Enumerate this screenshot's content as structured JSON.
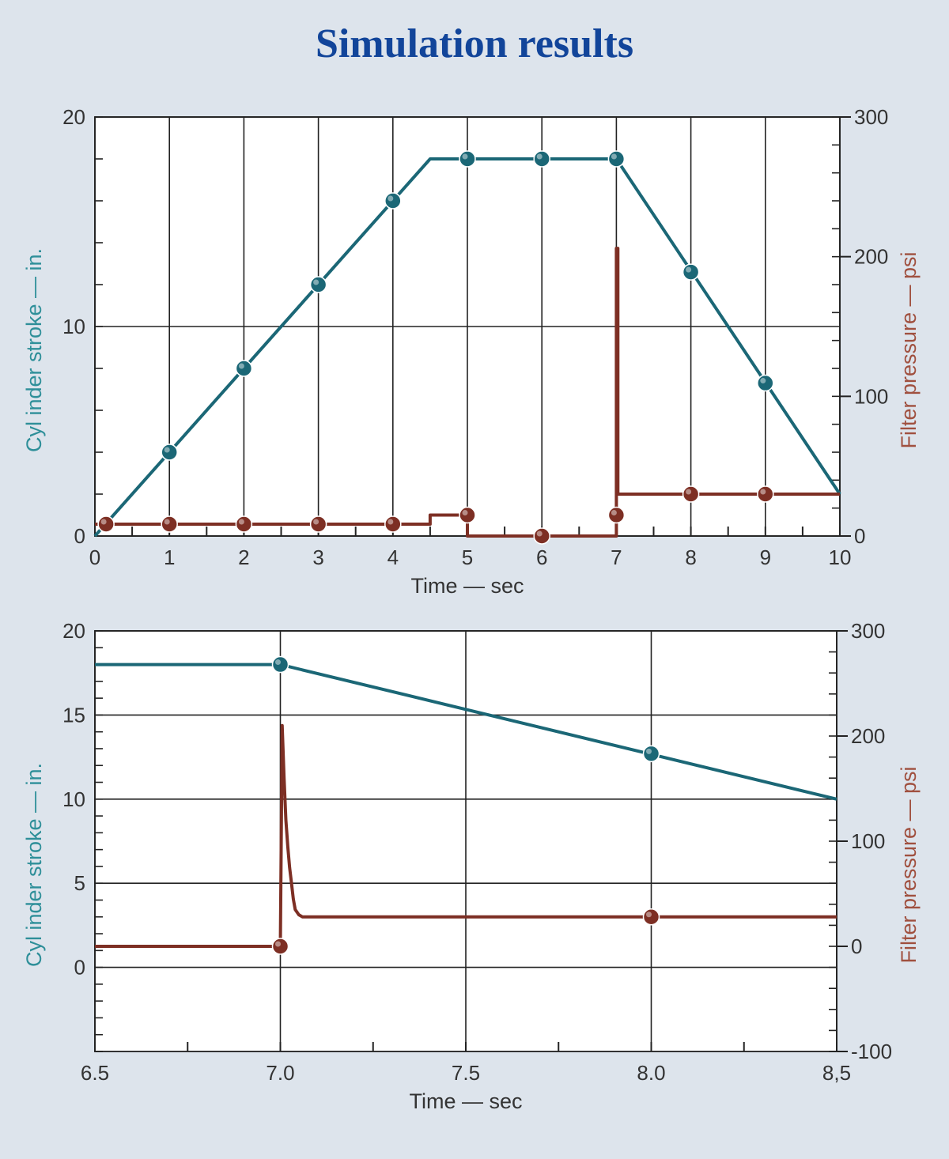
{
  "title": "Simulation results",
  "colors": {
    "background": "#dde4ec",
    "title": "#12459a",
    "stroke_series": "#1b6776",
    "stroke_label": "#2e8f99",
    "pressure_series": "#7d2f24",
    "pressure_label": "#a0503f"
  },
  "chart_data": [
    {
      "type": "line",
      "xlabel": "Time — sec",
      "ylabel_left": "Cyl inder stroke — in.",
      "ylabel_right": "Filter pressure — psi",
      "xlim": [
        0,
        10
      ],
      "ylim_left": [
        0,
        20
      ],
      "ylim_right": [
        0,
        300
      ],
      "x_ticks": [
        0,
        1,
        2,
        3,
        4,
        5,
        6,
        7,
        8,
        9,
        10
      ],
      "x_tick_labels": [
        "0",
        "1",
        "2",
        "3",
        "4",
        "5",
        "6",
        "7",
        "8",
        "9",
        "10"
      ],
      "y_ticks_left": [
        0,
        10,
        20
      ],
      "y_tick_labels_left": [
        "0",
        "10",
        "20"
      ],
      "y_ticks_right": [
        0,
        100,
        200,
        300
      ],
      "y_tick_labels_right": [
        "0",
        "100",
        "200",
        "300"
      ],
      "grid": true,
      "series": [
        {
          "axis": "left",
          "x": [
            0,
            4.5,
            7.0,
            10
          ],
          "y": [
            0,
            18,
            18,
            2
          ],
          "markers_x": [
            1,
            2,
            3,
            4,
            5,
            6,
            7,
            8,
            9
          ],
          "markers_y": [
            4,
            8,
            12,
            16,
            18,
            18,
            18,
            12.6,
            7.3
          ]
        },
        {
          "axis": "right",
          "x": [
            0,
            4.5,
            4.5,
            5.0,
            5.0,
            7.0,
            7.0,
            7.02,
            7.02,
            10
          ],
          "y": [
            8.5,
            8.5,
            15,
            15,
            0,
            0,
            206,
            206,
            30,
            30
          ],
          "markers_x": [
            0.15,
            1,
            2,
            3,
            4,
            5,
            6,
            7,
            8,
            9
          ],
          "markers_y": [
            8.5,
            8.5,
            8.5,
            8.5,
            8.5,
            15,
            0,
            15,
            30,
            30
          ]
        }
      ]
    },
    {
      "type": "line",
      "xlabel": "Time — sec",
      "ylabel_left": "Cyl inder stroke — in.",
      "ylabel_right": "Filter pressure — psi",
      "xlim": [
        6.5,
        8.5
      ],
      "ylim_left": [
        -5,
        20
      ],
      "ylim_right": [
        -100,
        300
      ],
      "x_ticks": [
        6.5,
        7.0,
        7.5,
        8.0,
        8.5
      ],
      "x_tick_labels": [
        "6.5",
        "7.0",
        "7.5",
        "8.0",
        "8,5"
      ],
      "y_ticks_left": [
        0,
        5,
        10,
        15,
        20
      ],
      "y_tick_labels_left": [
        "0",
        "5",
        "10",
        "15",
        "20"
      ],
      "y_ticks_right": [
        -100,
        0,
        100,
        200,
        300
      ],
      "y_tick_labels_right": [
        "-100",
        "0",
        "100",
        "200",
        "300"
      ],
      "grid": true,
      "series": [
        {
          "axis": "left",
          "x": [
            6.5,
            7.0,
            8.5
          ],
          "y": [
            18,
            18,
            10
          ],
          "markers_x": [
            7.0,
            8.0
          ],
          "markers_y": [
            18,
            12.7
          ]
        },
        {
          "axis": "right",
          "x": [
            6.5,
            7.0,
            7.005,
            7.01,
            7.015,
            7.02,
            7.025,
            7.03,
            7.035,
            7.04,
            7.05,
            7.06,
            8.5
          ],
          "y": [
            0,
            0,
            210,
            160,
            120,
            95,
            75,
            60,
            45,
            35,
            30,
            28,
            28
          ],
          "markers_x": [
            7.0,
            8.0
          ],
          "markers_y": [
            0,
            28
          ]
        }
      ]
    }
  ]
}
